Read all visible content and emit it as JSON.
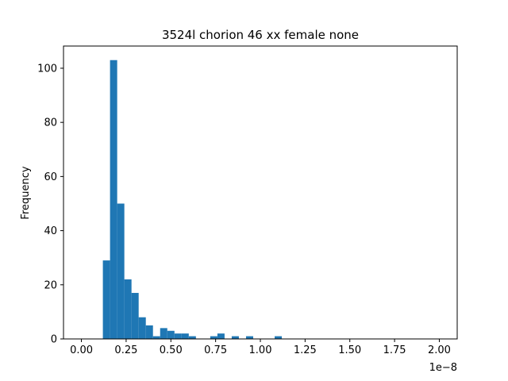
{
  "chart_data": {
    "type": "bar",
    "title": "3524l chorion 46 xx female none",
    "xlabel": "",
    "ylabel": "Frequency",
    "x_offset_label": "1e−8",
    "bar_color": "#1f77b4",
    "grid": false,
    "xlim": [
      -0.1,
      2.1
    ],
    "ylim": [
      0,
      108.2
    ],
    "x_ticks": [
      0.0,
      0.25,
      0.5,
      0.75,
      1.0,
      1.25,
      1.5,
      1.75,
      2.0
    ],
    "x_tick_labels": [
      "0.00",
      "0.25",
      "0.50",
      "0.75",
      "1.00",
      "1.25",
      "1.50",
      "1.75",
      "2.00"
    ],
    "y_ticks": [
      0,
      20,
      40,
      60,
      80,
      100
    ],
    "y_tick_labels": [
      "0",
      "20",
      "40",
      "60",
      "80",
      "100"
    ],
    "bin_width": 0.04,
    "bins_start": [
      0.12,
      0.16,
      0.2,
      0.24,
      0.28,
      0.32,
      0.36,
      0.4,
      0.44,
      0.48,
      0.52,
      0.56,
      0.6,
      0.64,
      0.68,
      0.72,
      0.76,
      0.8,
      0.84,
      0.88,
      0.92,
      0.96,
      1.0,
      1.04,
      1.08
    ],
    "counts": [
      29,
      103,
      50,
      22,
      17,
      8,
      5,
      1,
      4,
      3,
      2,
      2,
      1,
      0,
      0,
      1,
      2,
      0,
      1,
      0,
      1,
      0,
      0,
      0,
      1
    ]
  }
}
